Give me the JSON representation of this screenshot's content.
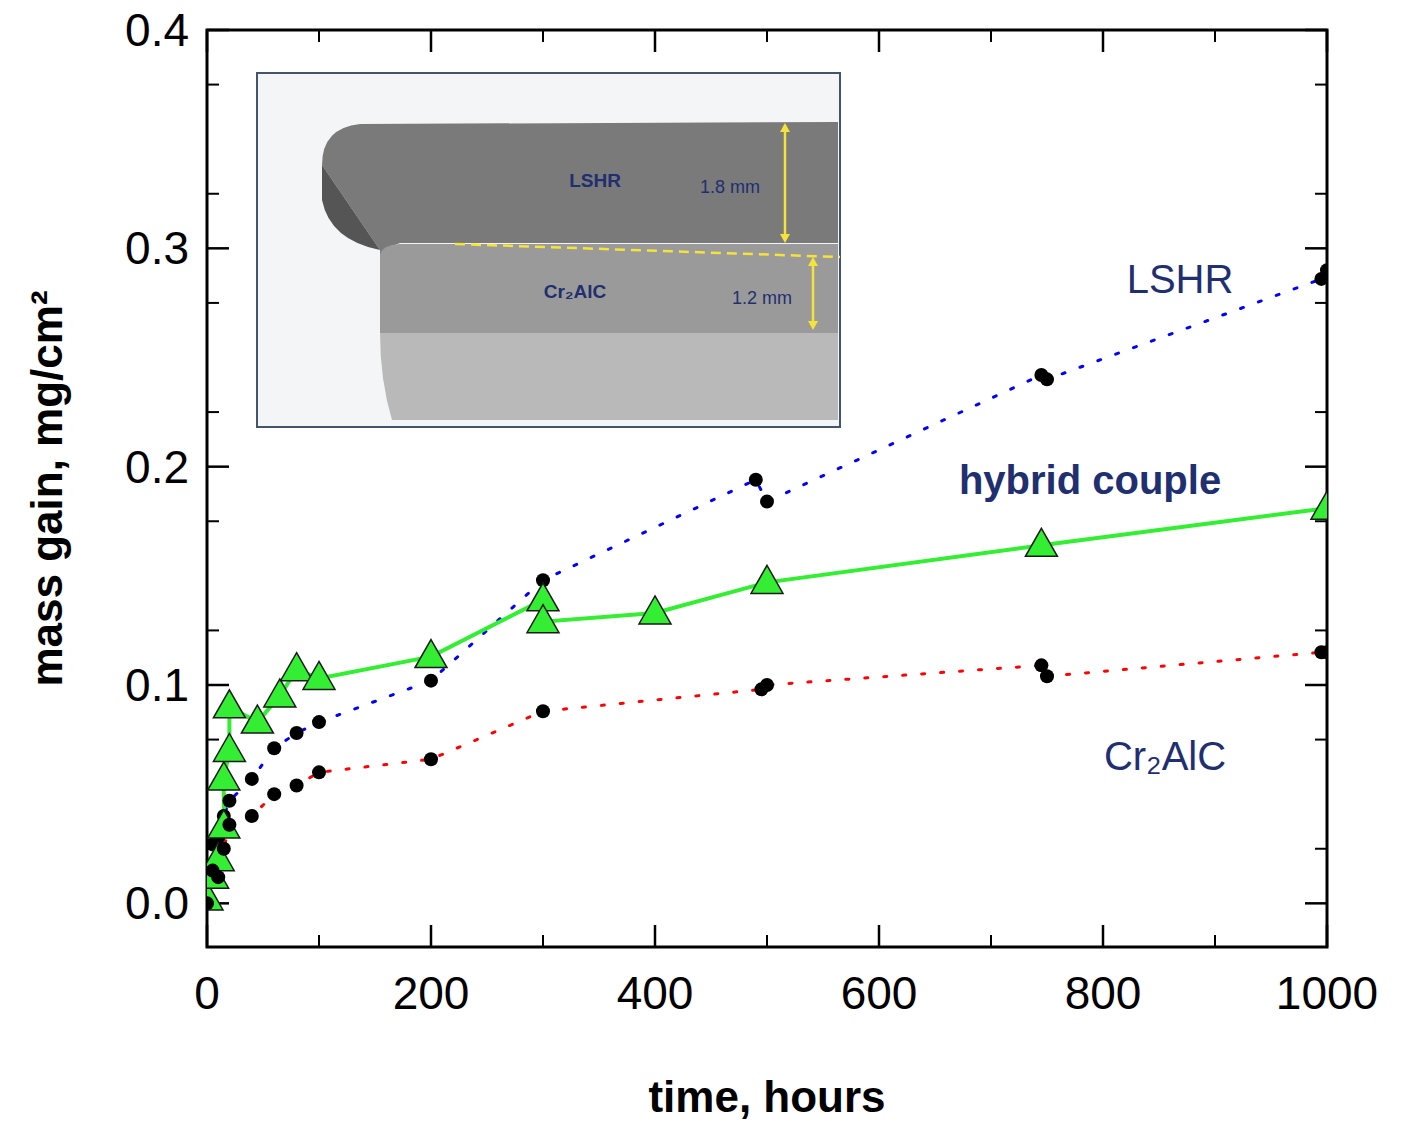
{
  "chart_data": {
    "type": "line",
    "xlabel": "time, hours",
    "ylabel": "mass gain, mg/cm²",
    "xlim": [
      0,
      1000
    ],
    "xticks": [
      0,
      200,
      400,
      600,
      800,
      1000
    ],
    "ylim": [
      -0.02,
      0.4
    ],
    "yticks": [
      {
        "value": 0,
        "label": "0.0"
      },
      0.1,
      0.2,
      0.3,
      0.4
    ],
    "grid": false,
    "annotations": [
      "LSHR",
      "1.8 mm",
      "Cr₂AlC",
      "1.2 mm"
    ],
    "series": [
      {
        "name": "LSHR",
        "color": "#0000ff",
        "marker": "circle",
        "line_style": "dotted",
        "x": [
          0,
          5,
          10,
          15,
          20,
          40,
          60,
          80,
          100,
          200,
          300,
          490,
          500,
          745,
          750,
          995,
          1000
        ],
        "values": [
          0.0,
          0.027,
          0.03,
          0.04,
          0.047,
          0.057,
          0.071,
          0.078,
          0.083,
          0.102,
          0.148,
          0.194,
          0.184,
          0.242,
          0.24,
          0.286,
          0.29
        ]
      },
      {
        "name": "hybrid couple",
        "color": "#33ee33",
        "marker": "triangle",
        "line_style": "solid",
        "x": [
          0,
          5,
          10,
          15,
          15,
          20,
          20,
          45,
          65,
          80,
          100,
          200,
          300,
          300,
          400,
          500,
          745,
          1000
        ],
        "values": [
          0.002,
          0.012,
          0.02,
          0.035,
          0.057,
          0.07,
          0.09,
          0.083,
          0.095,
          0.107,
          0.103,
          0.113,
          0.139,
          0.129,
          0.133,
          0.147,
          0.164,
          0.181
        ]
      },
      {
        "name": "Cr₂AlC",
        "color": "#ff0000",
        "marker": "circle",
        "line_style": "dotted",
        "x": [
          0,
          5,
          10,
          15,
          20,
          40,
          60,
          80,
          100,
          200,
          300,
          495,
          500,
          745,
          750,
          995,
          1000
        ],
        "values": [
          0.0,
          0.015,
          0.012,
          0.025,
          0.036,
          0.04,
          0.05,
          0.054,
          0.06,
          0.066,
          0.088,
          0.098,
          0.1,
          0.109,
          0.104,
          0.115,
          0.115
        ]
      }
    ]
  }
}
